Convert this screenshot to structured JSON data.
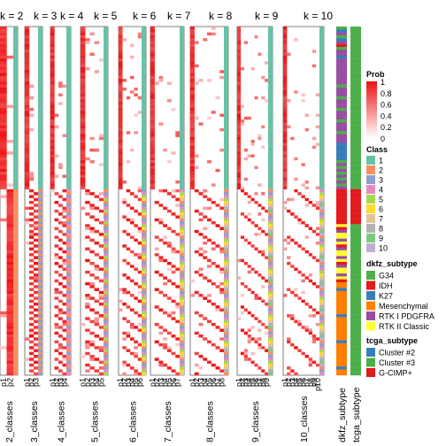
{
  "chart_data": {
    "type": "heatmap",
    "panels": [
      {
        "title": "k = 2",
        "columns": [
          "p1",
          "p2"
        ],
        "class_label": "2_classes",
        "n_classes": 2
      },
      {
        "title": "k = 3",
        "columns": [
          "p1",
          "p2",
          "p3"
        ],
        "class_label": "3_classes",
        "n_classes": 3
      },
      {
        "title": "k = 4",
        "columns": [
          "p1",
          "p2",
          "p3",
          "p4"
        ],
        "class_label": "4_classes",
        "n_classes": 4
      },
      {
        "title": "k = 5",
        "columns": [
          "p1",
          "p2",
          "p3",
          "p4",
          "p5"
        ],
        "class_label": "5_classes",
        "n_classes": 5
      },
      {
        "title": "k = 6",
        "columns": [
          "p1",
          "p2",
          "p3",
          "p4",
          "p5",
          "p6"
        ],
        "class_label": "6_classes",
        "n_classes": 6
      },
      {
        "title": "k = 7",
        "columns": [
          "p1",
          "p2",
          "p3",
          "p4",
          "p5",
          "p6",
          "p7"
        ],
        "class_label": "7_classes",
        "n_classes": 7
      },
      {
        "title": "k = 8",
        "columns": [
          "p1",
          "p2",
          "p3",
          "p4",
          "p5",
          "p6",
          "p7",
          "p8"
        ],
        "class_label": "8_classes",
        "n_classes": 8
      },
      {
        "title": "k = 9",
        "columns": [
          "p1",
          "p2",
          "p3",
          "p4",
          "p5",
          "p6",
          "p7",
          "p8",
          "p9"
        ],
        "class_label": "9_classes",
        "n_classes": 9
      },
      {
        "title": "k = 10",
        "columns": [
          "p1",
          "p2",
          "p3",
          "p4",
          "p5",
          "p6",
          "p7",
          "p8",
          "p9",
          "p10"
        ],
        "class_label": "10_classes",
        "n_classes": 10
      }
    ],
    "annotation_columns": [
      "dkfz_subtype",
      "tcga_subtype"
    ],
    "legends": {
      "prob": {
        "title": "Prob",
        "labels": [
          "1",
          "0.8",
          "0.6",
          "0.4",
          "0.2",
          "0"
        ],
        "low_color": "#ffffff",
        "high_color": "#ee1111"
      },
      "class": {
        "title": "Class",
        "labels": [
          "1",
          "2",
          "3",
          "4",
          "5",
          "6",
          "7",
          "8",
          "9",
          "10"
        ],
        "colors": [
          "#66c2a5",
          "#fc8d62",
          "#8da0cb",
          "#e78ac3",
          "#a6d854",
          "#ffd92f",
          "#e5c494",
          "#b3b3b3",
          "#7fc97f",
          "#beaed4"
        ]
      },
      "dkfz_subtype": {
        "title": "dkfz_subtype",
        "labels": [
          "G34",
          "IDH",
          "K27",
          "Mesenchymal",
          "RTK I PDGFRA",
          "RTK II Classic"
        ],
        "colors": [
          "#4daf4a",
          "#e41a1c",
          "#377eb8",
          "#ff7f00",
          "#984ea3",
          "#ffff33"
        ]
      },
      "tcga_subtype": {
        "title": "tcga_subtype",
        "labels": [
          "Cluster #2",
          "Cluster #3",
          "G-CIMP+"
        ],
        "colors": [
          "#377eb8",
          "#4daf4a",
          "#e41a1c"
        ]
      }
    }
  }
}
